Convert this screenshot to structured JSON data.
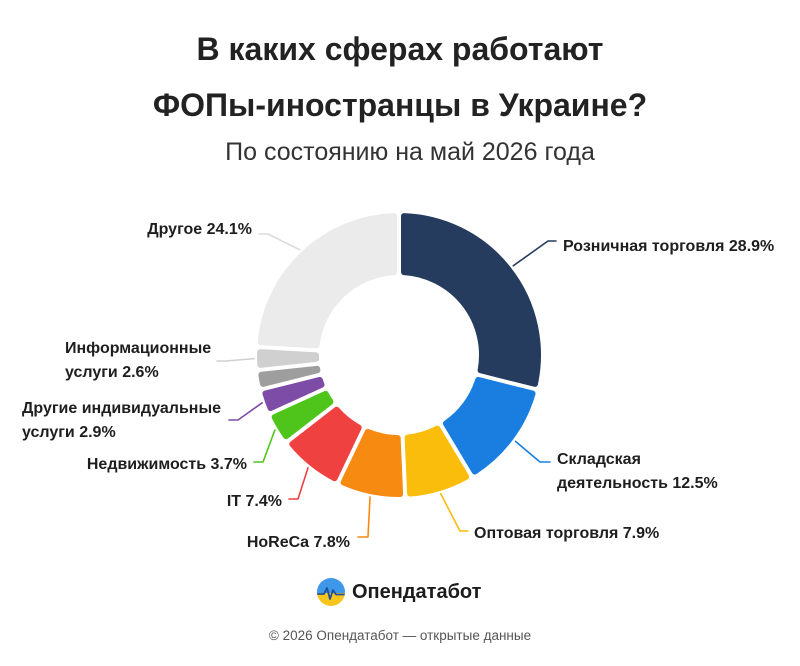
{
  "chart_data": {
    "type": "pie",
    "variant": "donut",
    "title_lines": [
      "В каких сферах работают",
      "ФОПы-иностранцы в Украине?"
    ],
    "subtitle": "По состоянию на май 2026 года",
    "unit": "%",
    "slices": [
      {
        "value": 28.9,
        "color": "#253c5f",
        "label_lines": [
          "Розничная торговля 28.9%"
        ]
      },
      {
        "value": 12.5,
        "color": "#1a7ee0",
        "label_lines": [
          "Складская",
          "деятельность 12.5%"
        ]
      },
      {
        "value": 7.9,
        "color": "#fbbd0b",
        "label_lines": [
          "Оптовая торговля 7.9%"
        ]
      },
      {
        "value": 7.8,
        "color": "#f78a10",
        "label_lines": [
          "HoReCa 7.8%"
        ]
      },
      {
        "value": 7.4,
        "color": "#f04141",
        "label_lines": [
          "IT 7.4%"
        ]
      },
      {
        "value": 3.7,
        "color": "#4fc51b",
        "label_lines": [
          "Недвижимость 3.7%"
        ]
      },
      {
        "value": 2.9,
        "color": "#7c4ca6",
        "label_lines": [
          "Другие индивидуальные",
          "услуги 2.9%"
        ]
      },
      {
        "value": 2.2,
        "color": "#9e9e9e",
        "label_lines": []
      },
      {
        "value": 2.6,
        "color": "#d0d0d0",
        "label_lines": [
          "Информационные",
          "услуги 2.6%"
        ]
      },
      {
        "value": 24.1,
        "color": "#ebebeb",
        "line_color": "#dcdcdc",
        "label_lines": [
          "Другое 24.1%"
        ]
      }
    ]
  },
  "brand": {
    "name": "Опендатабот",
    "logo_icon": "opendatabot-logo-icon",
    "logo_colors": {
      "sky": "#3f97e8",
      "field": "#f8c51c",
      "line": "#1f4f9a"
    }
  },
  "footer": {
    "copyright": "© 2026 Опендатабот — открытые данные"
  }
}
